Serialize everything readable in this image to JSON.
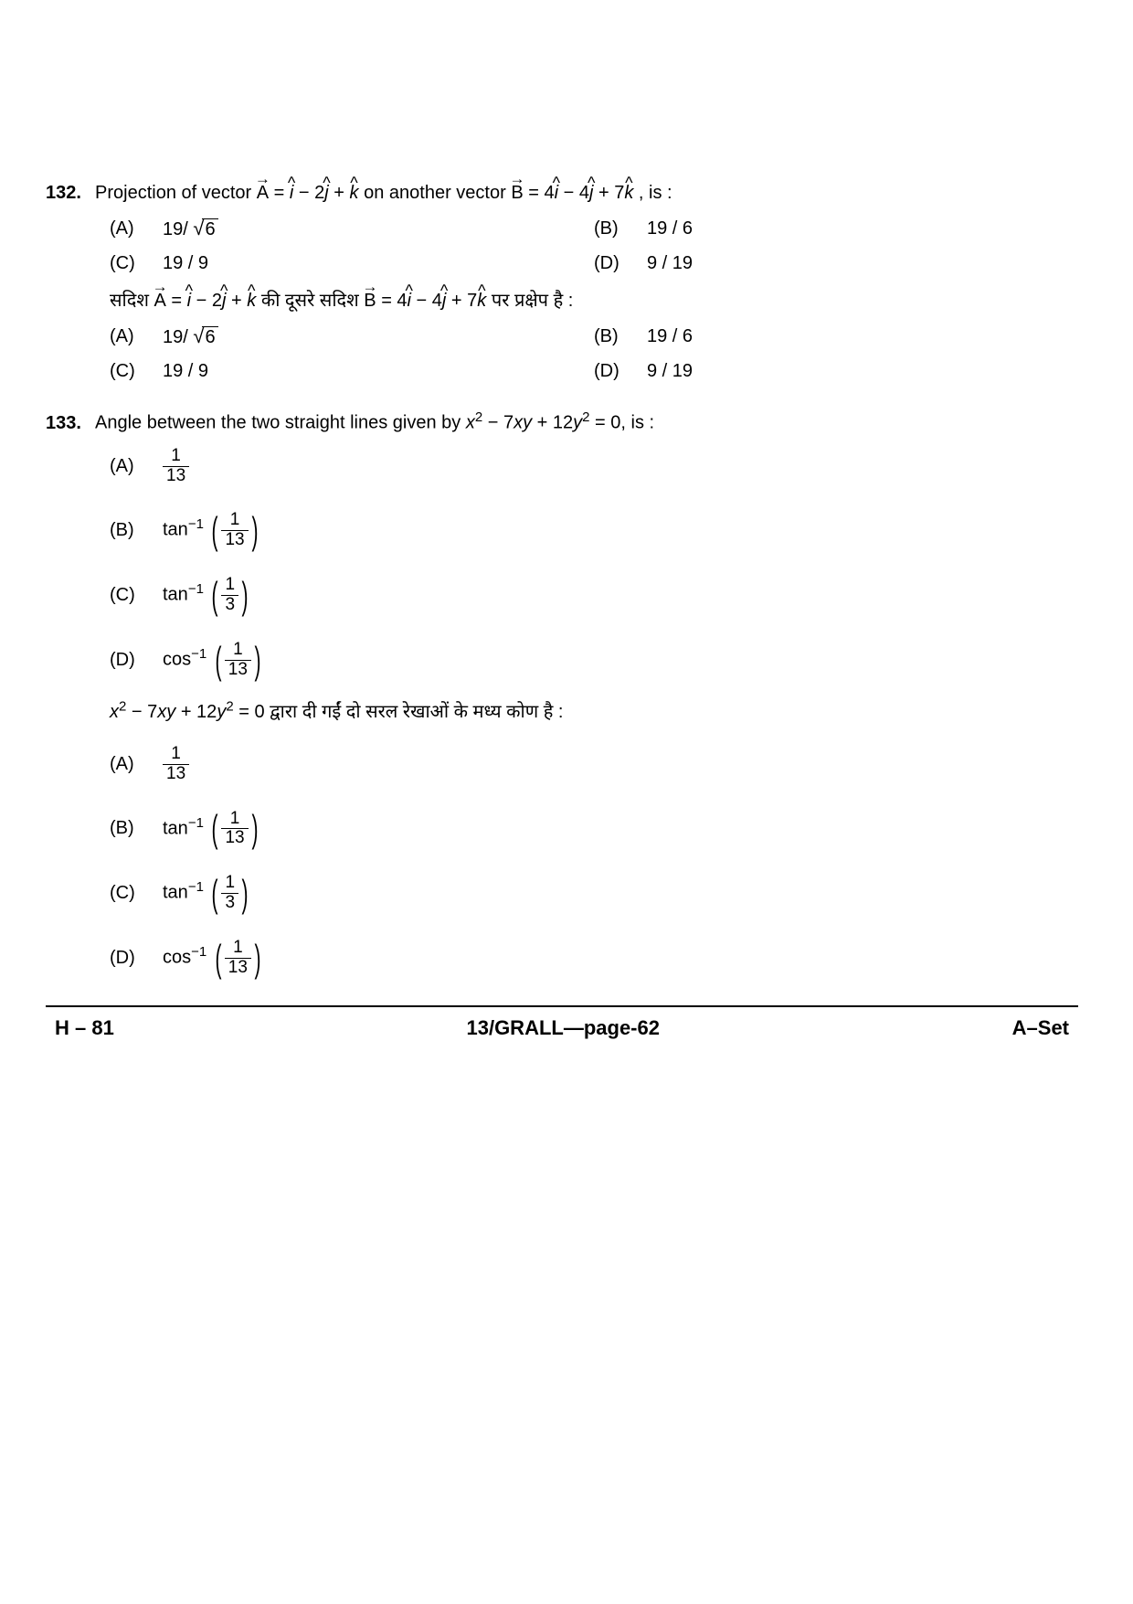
{
  "q132": {
    "number": "132.",
    "text_prefix": "Projection of vector ",
    "vecA": "A",
    "eqA_parts": [
      " = ",
      "i",
      " − 2",
      "j",
      " + ",
      "k"
    ],
    "text_mid": "  on another vector  ",
    "vecB": "B",
    "eqB_parts": [
      " = 4",
      "i",
      " − 4",
      "j",
      " + 7",
      "k"
    ],
    "text_suffix": " , is :",
    "options": {
      "A_label": "(A)",
      "A_text_pre": "19/ ",
      "A_sqrt": "6",
      "B_label": "(B)",
      "B_text": "19 / 6",
      "C_label": "(C)",
      "C_text": "19 / 9",
      "D_label": "(D)",
      "D_text": "9 / 19"
    },
    "hindi_prefix": "सदिश ",
    "hindi_mid": "  की दूसरे सदिश ",
    "hindi_suffix": "  पर प्रक्षेप है :"
  },
  "q133": {
    "number": "133.",
    "text_prefix": "Angle between the two straight lines given by ",
    "equation": {
      "x2": "x",
      "sup1": "2",
      "mid": " − 7",
      "xy": "xy",
      "mid2": " + 12",
      "y2": "y",
      "sup2": "2",
      "end": " = 0"
    },
    "text_suffix": ", is :",
    "options": {
      "A_label": "(A)",
      "A_num": "1",
      "A_den": "13",
      "B_label": "(B)",
      "B_func": "tan",
      "B_exp": "−1",
      "B_num": "1",
      "B_den": "13",
      "C_label": "(C)",
      "C_func": "tan",
      "C_exp": "−1",
      "C_num": "1",
      "C_den": "3",
      "D_label": "(D)",
      "D_func": "cos",
      "D_exp": "−1",
      "D_num": "1",
      "D_den": "13"
    },
    "hindi_suffix": " द्वारा दी गईं दो सरल रेखाओं के मध्य कोण है :"
  },
  "footer": {
    "left": "H – 81",
    "center": "13/GRALL—page-62",
    "right": "A–Set"
  }
}
